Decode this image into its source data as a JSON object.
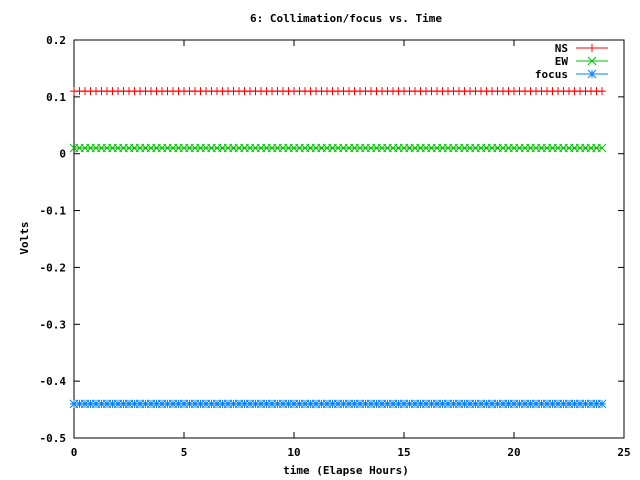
{
  "chart_data": {
    "type": "line",
    "title": "6: Collimation/focus vs. Time",
    "xlabel": "time (Elapse Hours)",
    "ylabel": "Volts",
    "xlim": [
      0,
      25
    ],
    "ylim": [
      -0.5,
      0.2
    ],
    "xticks": [
      0,
      5,
      10,
      15,
      20,
      25
    ],
    "xtick_labels": [
      "0",
      "5",
      "10",
      "15",
      "20",
      "25"
    ],
    "yticks": [
      0.2,
      0.1,
      0,
      -0.1,
      -0.2,
      -0.3,
      -0.4,
      -0.5
    ],
    "ytick_labels": [
      "0.2",
      "0.1",
      "0",
      "-0.1",
      "-0.2",
      "-0.3",
      "-0.4",
      "-0.5"
    ],
    "grid": false,
    "legend_position": "top-right",
    "x": {
      "start": 0,
      "end": 24,
      "step": 0.25
    },
    "series": [
      {
        "name": "NS",
        "value": 0.11,
        "color": "#ff0000",
        "marker": "plus"
      },
      {
        "name": "EW",
        "value": 0.01,
        "color": "#00c000",
        "marker": "cross"
      },
      {
        "name": "focus",
        "value": -0.44,
        "color": "#0080ff",
        "marker": "star"
      }
    ]
  }
}
